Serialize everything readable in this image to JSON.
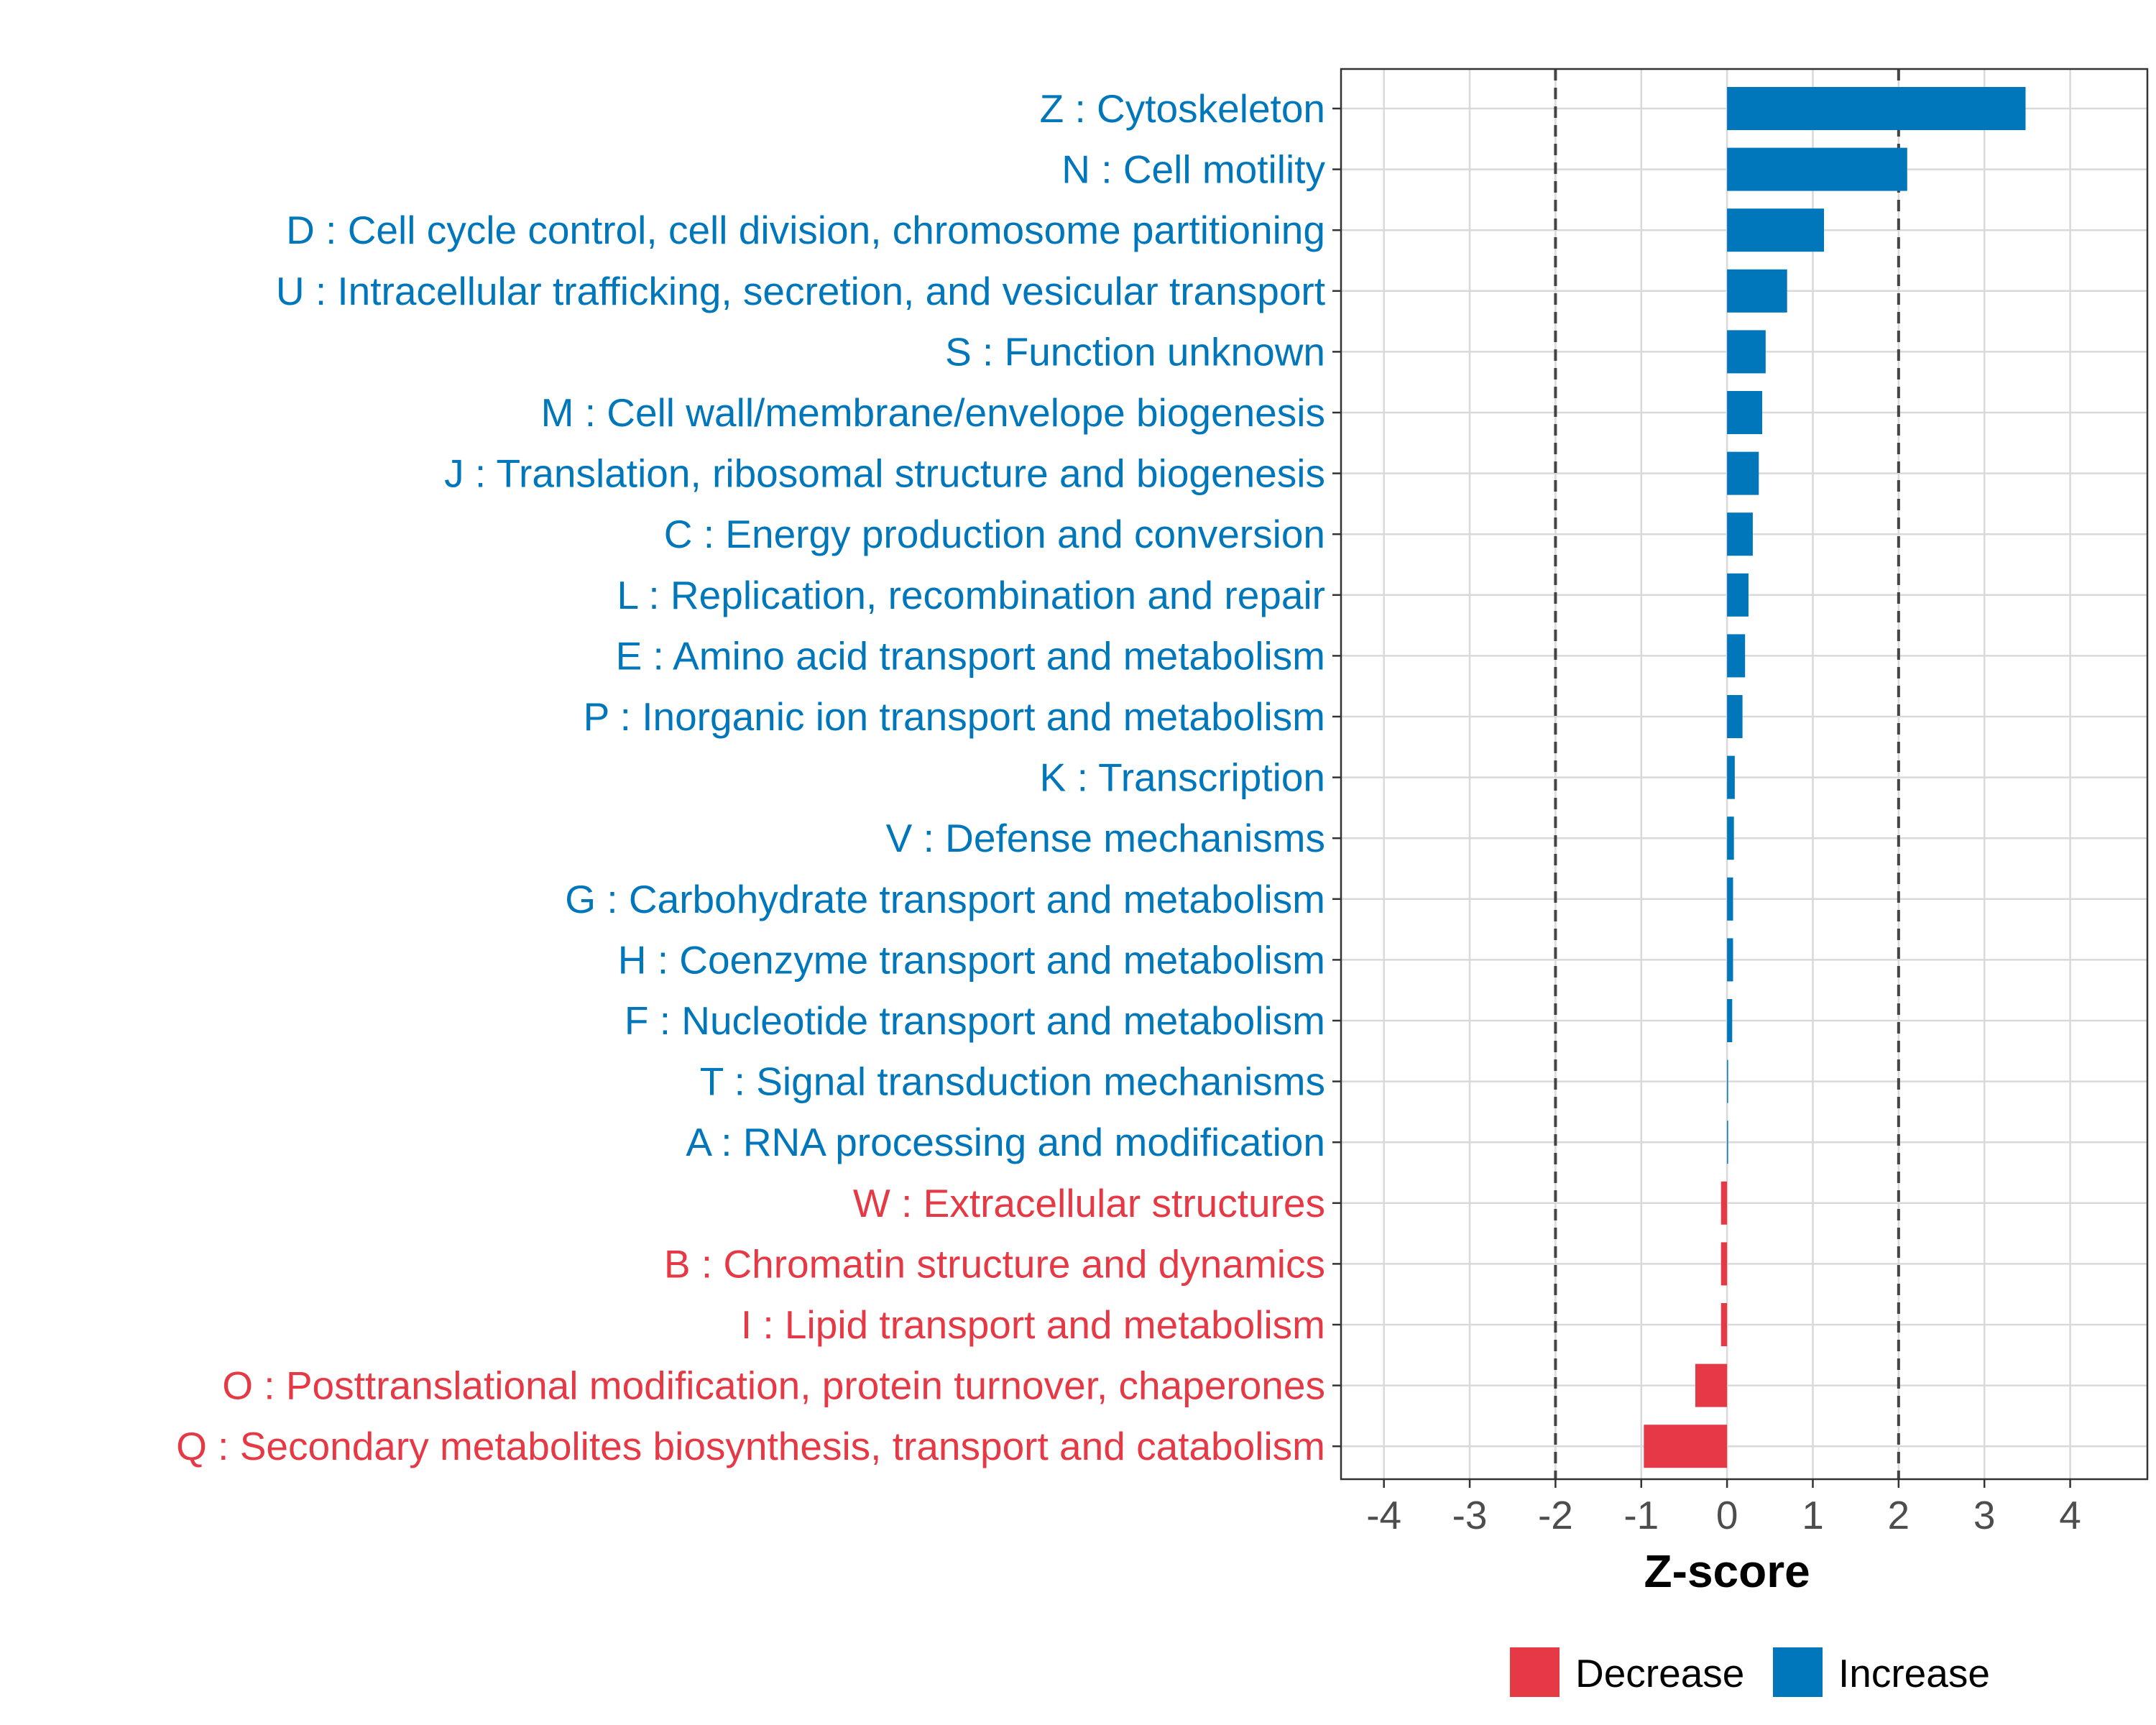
{
  "chart_data": {
    "type": "bar",
    "orientation": "horizontal",
    "xlabel": "Z-score",
    "xlim": [
      -4.5,
      4.9
    ],
    "x_ticks": [
      -4,
      -3,
      -2,
      -1,
      0,
      1,
      2,
      3,
      4
    ],
    "x_tick_labels": [
      "-4",
      "-3",
      "-2",
      "-1",
      "0",
      "1",
      "2",
      "3",
      "4"
    ],
    "reference_lines": [
      -2,
      2
    ],
    "grid": true,
    "categories": [
      "Z : Cytoskeleton",
      "N : Cell motility",
      "D : Cell cycle control, cell division, chromosome partitioning",
      "U : Intracellular trafficking, secretion, and vesicular transport",
      "S : Function unknown",
      "M : Cell wall/membrane/envelope biogenesis",
      "J : Translation, ribosomal structure and biogenesis",
      "C : Energy production and conversion",
      "L : Replication, recombination and repair",
      "E : Amino acid transport and metabolism",
      "P : Inorganic ion transport and metabolism",
      "K : Transcription",
      "V : Defense mechanisms",
      "G : Carbohydrate transport and metabolism",
      "H : Coenzyme transport and metabolism",
      "F : Nucleotide transport and metabolism",
      "T : Signal transduction mechanisms",
      "A : RNA processing and modification",
      "W : Extracellular structures",
      "B : Chromatin structure and dynamics",
      "I : Lipid transport and metabolism",
      "O : Posttranslational modification, protein turnover, chaperones",
      "Q : Secondary metabolites biosynthesis, transport and catabolism"
    ],
    "values": [
      3.48,
      2.1,
      1.13,
      0.7,
      0.45,
      0.41,
      0.37,
      0.3,
      0.25,
      0.21,
      0.18,
      0.09,
      0.08,
      0.07,
      0.07,
      0.06,
      0.01,
      0.01,
      -0.07,
      -0.07,
      -0.07,
      -0.37,
      -0.97
    ],
    "groups": [
      "Increase",
      "Increase",
      "Increase",
      "Increase",
      "Increase",
      "Increase",
      "Increase",
      "Increase",
      "Increase",
      "Increase",
      "Increase",
      "Increase",
      "Increase",
      "Increase",
      "Increase",
      "Increase",
      "Increase",
      "Increase",
      "Decrease",
      "Decrease",
      "Decrease",
      "Decrease",
      "Decrease"
    ],
    "legend": {
      "position": "bottom",
      "entries": [
        {
          "label": "Decrease",
          "color": "#e63946"
        },
        {
          "label": "Increase",
          "color": "#0077bb"
        }
      ]
    },
    "colors": {
      "Increase": "#0077bb",
      "Decrease": "#e63946"
    }
  }
}
